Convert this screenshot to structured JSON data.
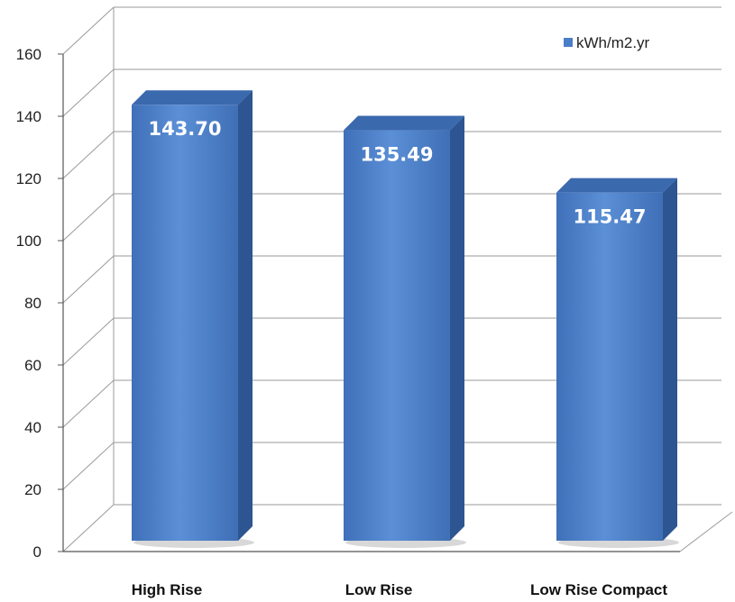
{
  "chart_data": {
    "type": "bar",
    "style": "3d-column",
    "categories": [
      "High Rise",
      "Low Rise",
      "Low Rise Compact"
    ],
    "series": [
      {
        "name": "kWh/m2.yr",
        "values": [
          143.7,
          135.49,
          115.47
        ],
        "data_labels": [
          "143.70",
          "135.49",
          "115.47"
        ]
      }
    ],
    "ylim": [
      0,
      160
    ],
    "yticks": [
      "0",
      "20",
      "40",
      "60",
      "80",
      "100",
      "120",
      "140",
      "160"
    ],
    "grid": true,
    "legend_position": "top-right",
    "colors": {
      "bar_front": "#4a7ec8",
      "bar_side": "#2d5591",
      "bar_top": "#3b69ad",
      "grid": "#9a9a9a"
    }
  }
}
